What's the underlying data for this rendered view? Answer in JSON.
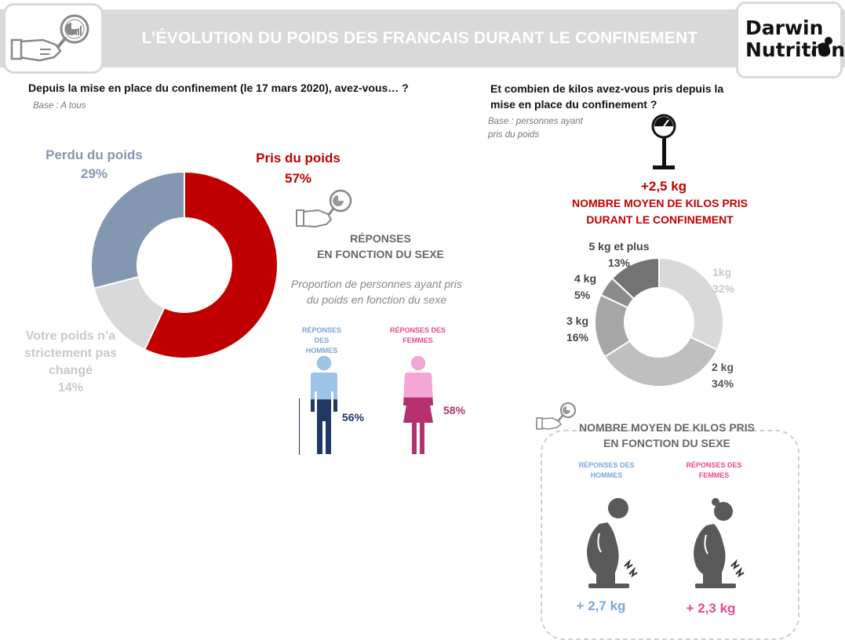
{
  "header": {
    "title": "L’ÉVOLUTION DU POIDS DES FRANCAIS DURANT LE CONFINEMENT"
  },
  "logo": {
    "line1": "Darwin",
    "line2": "Nutrition"
  },
  "left": {
    "question": "Depuis la mise en place du confinement (le 17 mars 2020), avez-vous… ?",
    "base": "Base : A tous"
  },
  "gender_section": {
    "heading_line1": "RÉPONSES",
    "heading_line2": "EN FONCTION DU SEXE",
    "subtitle_line1": "Proportion de personnes ayant pris",
    "subtitle_line2": "du poids en fonction du sexe",
    "men_label_line1": "RÉPONSES DES",
    "men_label_line2": "HOMMES",
    "women_label_line1": "RÉPONSES DES",
    "women_label_line2": "FEMMES",
    "men_value": "56%",
    "women_value": "58%",
    "men_percent": 56,
    "women_percent": 58
  },
  "right": {
    "question_line1": "Et combien de kilos avez-vous pris depuis la",
    "question_line2": "mise en place du confinement ?",
    "base_line1": "Base :  personnes ayant",
    "base_line2": "pris du poids",
    "avg_value": "+2,5 kg",
    "avg_label_line1": "NOMBRE MOYEN DE KILOS PRIS",
    "avg_label_line2": "DURANT LE CONFINEMENT"
  },
  "sex_avg_section": {
    "heading_line1": "NOMBRE MOYEN DE KILOS PRIS",
    "heading_line2": "EN FONCTION DU SEXE",
    "men_label_line1": "RÉPONSES DES",
    "men_label_line2": "HOMMES",
    "women_label_line1": "RÉPONSES DES",
    "women_label_line2": "FEMMES",
    "men_value": "+ 2,7 kg",
    "women_value": "+ 2,3 kg"
  },
  "colors": {
    "gained": "#c00000",
    "lost": "#8497b0",
    "unchanged": "#d9d9d9",
    "men": "#9dc3e6",
    "men_dark": "#203864",
    "women": "#f4a6d7",
    "women_dark": "#b5306e",
    "men_text": "#7ba7d6",
    "women_text": "#e8488e"
  },
  "chart_data": [
    {
      "type": "pie",
      "style": "donut",
      "series": [
        {
          "name_line1": "Pris du poids",
          "name_line2": "",
          "name_line3": "",
          "value": 57,
          "label": "57%",
          "color": "#c00000"
        },
        {
          "name_line1": "Votre poids n’a",
          "name_line2": "strictement pas",
          "name_line3": "changé",
          "value": 14,
          "label": "14%",
          "color": "#d9d9d9"
        },
        {
          "name_line1": "Perdu du poids",
          "name_line2": "",
          "name_line3": "",
          "value": 29,
          "label": "29%",
          "color": "#8497b0"
        }
      ]
    },
    {
      "type": "pie",
      "style": "donut",
      "series": [
        {
          "name": "1kg",
          "value": 32,
          "label": "32%",
          "color": "#d9d9d9"
        },
        {
          "name": "2 kg",
          "value": 34,
          "label": "34%",
          "color": "#bfbfbf"
        },
        {
          "name": "3 kg",
          "value": 16,
          "label": "16%",
          "color": "#a6a6a6"
        },
        {
          "name": "4 kg",
          "value": 5,
          "label": "5%",
          "color": "#8c8c8c"
        },
        {
          "name": "5 kg et plus",
          "value": 13,
          "label": "13%",
          "color": "#737373"
        }
      ]
    }
  ]
}
